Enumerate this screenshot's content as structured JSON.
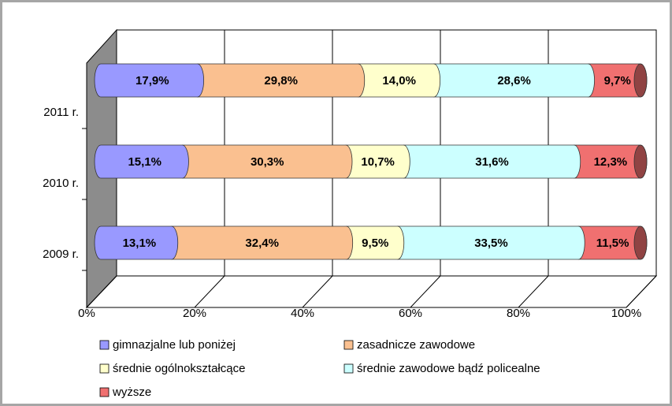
{
  "chart_data": {
    "type": "stacked-bar-horizontal",
    "categories": [
      "2011 r.",
      "2010 r.",
      "2009 r."
    ],
    "series": [
      {
        "name": "gimnazjalne lub poniżej",
        "color": "#9999ff",
        "values": [
          17.9,
          15.1,
          13.1
        ],
        "value_labels": [
          "17,9%",
          "15,1%",
          "13,1%"
        ]
      },
      {
        "name": "zasadnicze zawodowe",
        "color": "#fac090",
        "values": [
          29.8,
          30.3,
          32.4
        ],
        "value_labels": [
          "29,8%",
          "30,3%",
          "32,4%"
        ]
      },
      {
        "name": "średnie ogólnokształcące",
        "color": "#ffffcc",
        "values": [
          14.0,
          10.7,
          9.5
        ],
        "value_labels": [
          "14,0%",
          "10,7%",
          "9,5%"
        ]
      },
      {
        "name": "średnie zawodowe bądź policealne",
        "color": "#ccffff",
        "values": [
          28.6,
          31.6,
          33.5
        ],
        "value_labels": [
          "28,6%",
          "31,6%",
          "33,5%"
        ]
      },
      {
        "name": "wyższe",
        "color": "#f07070",
        "values": [
          9.7,
          12.3,
          11.5
        ],
        "value_labels": [
          "9,7%",
          "12,3%",
          "11,5%"
        ]
      }
    ],
    "xlim": [
      0,
      100
    ],
    "xticks": [
      {
        "value": 0,
        "label": "0%"
      },
      {
        "value": 20,
        "label": "20%"
      },
      {
        "value": 40,
        "label": "40%"
      },
      {
        "value": 60,
        "label": "60%"
      },
      {
        "value": 80,
        "label": "80%"
      },
      {
        "value": 100,
        "label": "100%"
      }
    ],
    "grid": true
  }
}
